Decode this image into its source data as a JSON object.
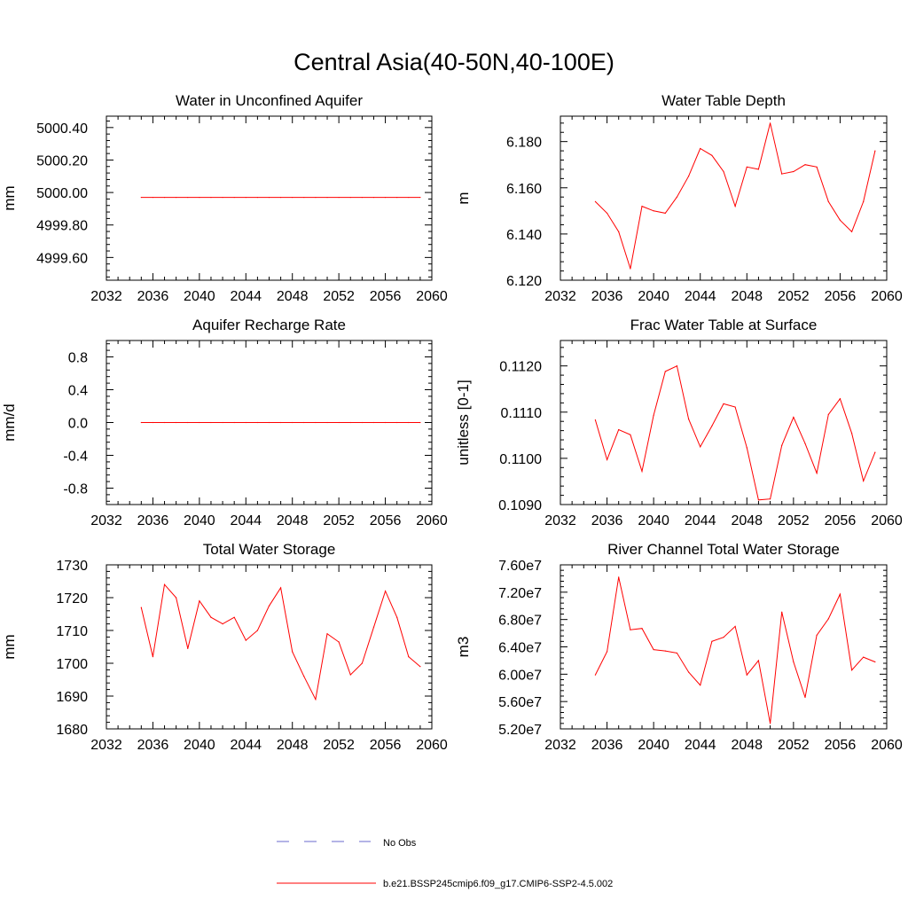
{
  "title": "Central Asia(40-50N,40-100E)",
  "colors": {
    "model": "#ff0000",
    "obs": "#6a6acd",
    "axis": "#000000"
  },
  "legend": {
    "obs_label": "No Obs",
    "model_label": "b.e21.BSSP245cmip6.f09_g17.CMIP6-SSP2-4.5.002"
  },
  "chart_data": [
    {
      "type": "line",
      "title": "Water in Unconfined Aquifer",
      "ylabel": "mm",
      "xlim": [
        2032,
        2060
      ],
      "ylim": [
        4999.46,
        5000.47
      ],
      "xticks": [
        2032,
        2036,
        2040,
        2044,
        2048,
        2052,
        2056,
        2060
      ],
      "xtick_labels": [
        "2032",
        "2036",
        "2040",
        "2044",
        "2048",
        "2052",
        "2056",
        "2060"
      ],
      "yticks": [
        4999.6,
        4999.8,
        5000.0,
        5000.2,
        5000.4
      ],
      "ytick_labels": [
        "4999.60",
        "4999.80",
        "5000.00",
        "5000.20",
        "5000.40"
      ],
      "x": [
        2035,
        2036,
        2037,
        2038,
        2039,
        2040,
        2041,
        2042,
        2043,
        2044,
        2045,
        2046,
        2047,
        2048,
        2049,
        2050,
        2051,
        2052,
        2053,
        2054,
        2055,
        2056,
        2057,
        2058,
        2059
      ],
      "series": [
        {
          "values": [
            4999.97,
            4999.97,
            4999.97,
            4999.97,
            4999.97,
            4999.97,
            4999.97,
            4999.97,
            4999.97,
            4999.97,
            4999.97,
            4999.97,
            4999.97,
            4999.97,
            4999.97,
            4999.97,
            4999.97,
            4999.97,
            4999.97,
            4999.97,
            4999.97,
            4999.97,
            4999.97,
            4999.97,
            4999.97
          ]
        }
      ]
    },
    {
      "type": "line",
      "title": "Water Table Depth",
      "ylabel": "m",
      "xlim": [
        2032,
        2060
      ],
      "ylim": [
        6.12,
        6.191
      ],
      "xticks": [
        2032,
        2036,
        2040,
        2044,
        2048,
        2052,
        2056,
        2060
      ],
      "xtick_labels": [
        "2032",
        "2036",
        "2040",
        "2044",
        "2048",
        "2052",
        "2056",
        "2060"
      ],
      "yticks": [
        6.12,
        6.14,
        6.16,
        6.18
      ],
      "ytick_labels": [
        "6.120",
        "6.140",
        "6.160",
        "6.180"
      ],
      "x": [
        2035,
        2036,
        2037,
        2038,
        2039,
        2040,
        2041,
        2042,
        2043,
        2044,
        2045,
        2046,
        2047,
        2048,
        2049,
        2050,
        2051,
        2052,
        2053,
        2054,
        2055,
        2056,
        2057,
        2058,
        2059
      ],
      "series": [
        {
          "values": [
            6.154,
            6.149,
            6.141,
            6.125,
            6.152,
            6.15,
            6.149,
            6.156,
            6.165,
            6.177,
            6.174,
            6.167,
            6.152,
            6.169,
            6.168,
            6.188,
            6.166,
            6.167,
            6.17,
            6.169,
            6.154,
            6.146,
            6.141,
            6.154,
            6.176
          ]
        }
      ]
    },
    {
      "type": "line",
      "title": "Aquifer Recharge Rate",
      "ylabel": "mm/d",
      "xlim": [
        2032,
        2060
      ],
      "ylim": [
        -1.0,
        1.0
      ],
      "xticks": [
        2032,
        2036,
        2040,
        2044,
        2048,
        2052,
        2056,
        2060
      ],
      "xtick_labels": [
        "2032",
        "2036",
        "2040",
        "2044",
        "2048",
        "2052",
        "2056",
        "2060"
      ],
      "yticks": [
        -0.8,
        -0.4,
        0.0,
        0.4,
        0.8
      ],
      "ytick_labels": [
        "-0.8",
        "-0.4",
        "0.0",
        "0.4",
        "0.8"
      ],
      "x": [
        2035,
        2036,
        2037,
        2038,
        2039,
        2040,
        2041,
        2042,
        2043,
        2044,
        2045,
        2046,
        2047,
        2048,
        2049,
        2050,
        2051,
        2052,
        2053,
        2054,
        2055,
        2056,
        2057,
        2058,
        2059
      ],
      "series": [
        {
          "values": [
            0,
            0,
            0,
            0,
            0,
            0,
            0,
            0,
            0,
            0,
            0,
            0,
            0,
            0,
            0,
            0,
            0,
            0,
            0,
            0,
            0,
            0,
            0,
            0,
            0
          ]
        }
      ]
    },
    {
      "type": "line",
      "title": "Frac Water Table at Surface",
      "ylabel": "unitless [0-1]",
      "xlim": [
        2032,
        2060
      ],
      "ylim": [
        0.109,
        0.11255
      ],
      "xticks": [
        2032,
        2036,
        2040,
        2044,
        2048,
        2052,
        2056,
        2060
      ],
      "xtick_labels": [
        "2032",
        "2036",
        "2040",
        "2044",
        "2048",
        "2052",
        "2056",
        "2060"
      ],
      "yticks": [
        0.109,
        0.11,
        0.111,
        0.112
      ],
      "ytick_labels": [
        "0.1090",
        "0.1100",
        "0.1110",
        "0.1120"
      ],
      "x": [
        2035,
        2036,
        2037,
        2038,
        2039,
        2040,
        2041,
        2042,
        2043,
        2044,
        2045,
        2046,
        2047,
        2048,
        2049,
        2050,
        2051,
        2052,
        2053,
        2054,
        2055,
        2056,
        2057,
        2058,
        2059
      ],
      "series": [
        {
          "values": [
            0.11083,
            0.10997,
            0.11062,
            0.11051,
            0.10972,
            0.11093,
            0.11188,
            0.112,
            0.11085,
            0.11025,
            0.1107,
            0.11118,
            0.11111,
            0.11023,
            0.1091,
            0.10912,
            0.11028,
            0.11089,
            0.11032,
            0.10968,
            0.11095,
            0.11129,
            0.11054,
            0.10951,
            0.11013
          ]
        }
      ]
    },
    {
      "type": "line",
      "title": "Total Water Storage",
      "ylabel": "mm",
      "xlim": [
        2032,
        2060
      ],
      "ylim": [
        1680,
        1730
      ],
      "xticks": [
        2032,
        2036,
        2040,
        2044,
        2048,
        2052,
        2056,
        2060
      ],
      "xtick_labels": [
        "2032",
        "2036",
        "2040",
        "2044",
        "2048",
        "2052",
        "2056",
        "2060"
      ],
      "yticks": [
        1680,
        1690,
        1700,
        1710,
        1720,
        1730
      ],
      "ytick_labels": [
        "1680",
        "1690",
        "1700",
        "1710",
        "1720",
        "1730"
      ],
      "x": [
        2035,
        2036,
        2037,
        2038,
        2039,
        2040,
        2041,
        2042,
        2043,
        2044,
        2045,
        2046,
        2047,
        2048,
        2049,
        2050,
        2051,
        2052,
        2053,
        2054,
        2055,
        2056,
        2057,
        2058,
        2059
      ],
      "series": [
        {
          "values": [
            1717,
            1702,
            1724,
            1720,
            1704.5,
            1719,
            1714,
            1712,
            1714,
            1707,
            1710,
            1717.5,
            1723,
            1703.5,
            1696,
            1689,
            1709,
            1706.5,
            1696.5,
            1700,
            1711,
            1722,
            1714,
            1702,
            1699
          ]
        }
      ]
    },
    {
      "type": "line",
      "title": "River Channel Total Water Storage",
      "ylabel": "m3",
      "xlim": [
        2032,
        2060
      ],
      "ylim": [
        52000000,
        76000000
      ],
      "xticks": [
        2032,
        2036,
        2040,
        2044,
        2048,
        2052,
        2056,
        2060
      ],
      "xtick_labels": [
        "2032",
        "2036",
        "2040",
        "2044",
        "2048",
        "2052",
        "2056",
        "2060"
      ],
      "yticks": [
        52000000,
        56000000,
        60000000,
        64000000,
        68000000,
        72000000,
        76000000
      ],
      "ytick_labels": [
        "5.20e7",
        "5.60e7",
        "6.00e7",
        "6.40e7",
        "6.80e7",
        "7.20e7",
        "7.60e7"
      ],
      "x": [
        2035,
        2036,
        2037,
        2038,
        2039,
        2040,
        2041,
        2042,
        2043,
        2044,
        2045,
        2046,
        2047,
        2048,
        2049,
        2050,
        2051,
        2052,
        2053,
        2054,
        2055,
        2056,
        2057,
        2058,
        2059
      ],
      "series": [
        {
          "values": [
            59900000,
            63300000,
            74200000,
            66500000,
            66700000,
            63600000,
            63400000,
            63100000,
            60300000,
            58400000,
            64800000,
            65400000,
            67000000,
            59900000,
            62000000,
            52800000,
            69100000,
            61800000,
            56600000,
            65700000,
            68100000,
            71700000,
            60600000,
            62500000,
            61800000
          ]
        }
      ]
    }
  ]
}
